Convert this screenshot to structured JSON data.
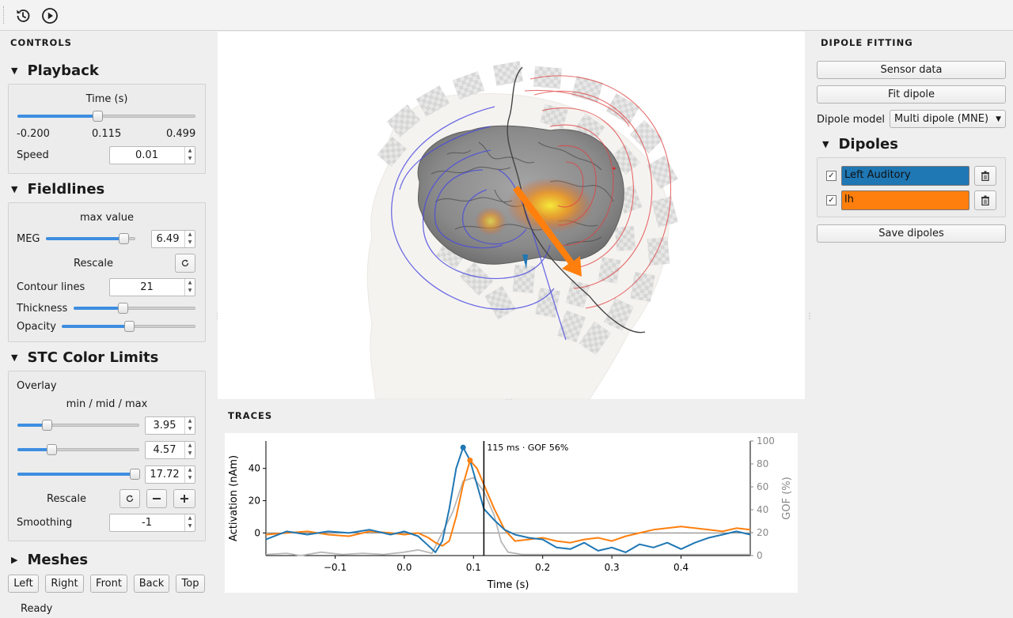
{
  "toolbar": {
    "icons": [
      "history-icon",
      "play-icon"
    ]
  },
  "controls": {
    "title": "CONTROLS",
    "playback": {
      "header": "Playback",
      "time_label": "Time (s)",
      "time_min": "-0.200",
      "time_current": "0.115",
      "time_max": "0.499",
      "time_fraction": 0.45,
      "speed_label": "Speed",
      "speed_value": "0.01"
    },
    "fieldlines": {
      "header": "Fieldlines",
      "max_value_label": "max value",
      "meg_label": "MEG",
      "meg_value": "6.49",
      "meg_fraction": 0.87,
      "rescale_label": "Rescale",
      "contour_label": "Contour lines",
      "contour_value": "21",
      "thickness_label": "Thickness",
      "thickness_fraction": 0.4,
      "opacity_label": "Opacity",
      "opacity_fraction": 0.5
    },
    "stc": {
      "header": "STC Color Limits",
      "overlay_label": "Overlay",
      "mmm_label": "min / mid / max",
      "min_value": "3.95",
      "min_fraction": 0.24,
      "mid_value": "4.57",
      "mid_fraction": 0.28,
      "max_value": "17.72",
      "max_fraction": 0.96,
      "rescale_label": "Rescale",
      "smoothing_label": "Smoothing",
      "smoothing_value": "-1"
    },
    "meshes": {
      "header": "Meshes",
      "views": [
        "Left",
        "Right",
        "Front",
        "Back",
        "Top"
      ]
    }
  },
  "status": "Ready",
  "traces": {
    "title": "TRACES"
  },
  "dipole_fitting": {
    "title": "DIPOLE FITTING",
    "sensor_data": "Sensor data",
    "fit_dipole": "Fit dipole",
    "model_label": "Dipole model",
    "model_value": "Multi dipole (MNE)",
    "dipoles_header": "Dipoles",
    "dipoles": [
      {
        "name": "Left Auditory",
        "checked": true,
        "color": "#1f77b4"
      },
      {
        "name": "lh",
        "checked": true,
        "color": "#ff7f0e"
      }
    ],
    "save": "Save dipoles"
  },
  "chart_data": {
    "type": "line",
    "xlabel": "Time (s)",
    "ylabel": "Activation (nAm)",
    "y2label": "GOF (%)",
    "xlim": [
      -0.2,
      0.5
    ],
    "ylim": [
      -14,
      57
    ],
    "y2lim": [
      0,
      100
    ],
    "xticks": [
      "−0.1",
      "0.0",
      "0.1",
      "0.2",
      "0.3",
      "0.4"
    ],
    "yticks": [
      "0",
      "20",
      "40"
    ],
    "y2ticks": [
      "0",
      "20",
      "40",
      "60",
      "80",
      "100"
    ],
    "cursor_x": 0.115,
    "annotation": "115 ms · GOF 56%",
    "series": [
      {
        "color": "#1f77b4",
        "x": [
          -0.2,
          -0.17,
          -0.14,
          -0.11,
          -0.08,
          -0.05,
          -0.02,
          0.0,
          0.02,
          0.035,
          0.045,
          0.055,
          0.065,
          0.075,
          0.085,
          0.095,
          0.105,
          0.115,
          0.13,
          0.145,
          0.16,
          0.18,
          0.2,
          0.22,
          0.24,
          0.26,
          0.28,
          0.3,
          0.32,
          0.34,
          0.36,
          0.38,
          0.4,
          0.42,
          0.44,
          0.46,
          0.48,
          0.5
        ],
        "y": [
          -4,
          1,
          -1,
          1,
          0,
          2,
          -1,
          1,
          -2,
          -8,
          -12,
          -5,
          15,
          40,
          53,
          45,
          30,
          15,
          8,
          2,
          -1,
          -3,
          -4,
          -9,
          -10,
          -6,
          -11,
          -9,
          -12,
          -7,
          -9,
          -6,
          -10,
          -6,
          -3,
          -1,
          1,
          -1
        ]
      },
      {
        "color": "#ff7f0e",
        "x": [
          -0.2,
          -0.17,
          -0.14,
          -0.11,
          -0.08,
          -0.05,
          -0.02,
          0.0,
          0.02,
          0.035,
          0.045,
          0.055,
          0.065,
          0.075,
          0.085,
          0.095,
          0.105,
          0.115,
          0.13,
          0.145,
          0.16,
          0.18,
          0.2,
          0.22,
          0.24,
          0.26,
          0.28,
          0.3,
          0.32,
          0.34,
          0.36,
          0.38,
          0.4,
          0.42,
          0.44,
          0.46,
          0.48,
          0.5
        ],
        "y": [
          -1,
          0,
          1,
          -1,
          -2,
          1,
          0,
          -1,
          0,
          -3,
          -6,
          -8,
          -5,
          10,
          30,
          45,
          40,
          30,
          15,
          2,
          -5,
          -4,
          -3,
          -5,
          -6,
          -4,
          -3,
          -5,
          -2,
          0,
          2,
          3,
          4,
          3,
          2,
          1,
          3,
          2
        ]
      },
      {
        "color": "#b8b8b8",
        "axis": "gof",
        "x": [
          -0.2,
          -0.17,
          -0.15,
          -0.12,
          -0.09,
          -0.06,
          -0.03,
          0.0,
          0.02,
          0.04,
          0.055,
          0.07,
          0.085,
          0.1,
          0.115,
          0.13,
          0.14,
          0.15,
          0.17,
          0.2,
          0.25,
          0.3,
          0.35,
          0.4,
          0.45,
          0.5
        ],
        "y": [
          1,
          2,
          0,
          3,
          1,
          2,
          1,
          3,
          5,
          2,
          20,
          38,
          65,
          68,
          56,
          35,
          12,
          3,
          1,
          1,
          1,
          1,
          1,
          1,
          1,
          1
        ]
      }
    ],
    "markers": [
      {
        "series": 0,
        "x": 0.085
      },
      {
        "series": 1,
        "x": 0.095
      }
    ]
  }
}
